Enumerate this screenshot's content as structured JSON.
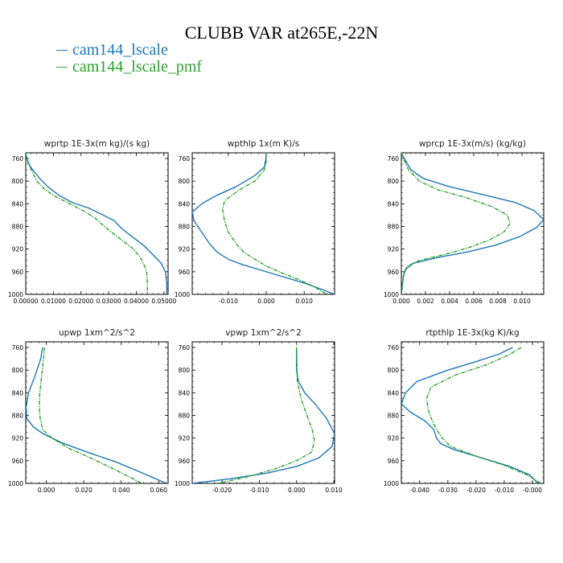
{
  "figure": {
    "title": "CLUBB VAR at265E,-22N",
    "colors": {
      "lscale": "#1f77b4",
      "lscale_pmf": "#2ca02c"
    },
    "legend": [
      "cam144_lscale",
      "cam144_lscale_pmf"
    ]
  },
  "chart_data": [
    {
      "type": "line",
      "title": "wprtp  1E-3x(m kg)/(s kg)",
      "xlim": [
        0.0,
        0.0515
      ],
      "ylim": [
        1000,
        750
      ],
      "xticks": [
        0.0,
        0.01,
        0.02,
        0.03,
        0.04,
        0.05
      ],
      "xticklabels": [
        "0.00000",
        "0.01000",
        "0.02000",
        "0.03000",
        "0.04000",
        "0.05000"
      ],
      "yticks": [
        760,
        800,
        840,
        880,
        920,
        960,
        1000
      ],
      "series": [
        {
          "name": "cam144_lscale",
          "dashed": false,
          "x": [
            0.0,
            0.0004,
            0.0012,
            0.0025,
            0.005,
            0.008,
            0.012,
            0.017,
            0.023,
            0.028,
            0.032,
            0.035,
            0.039,
            0.043,
            0.046,
            0.049,
            0.0505,
            0.051,
            0.051
          ],
          "y": [
            750,
            760,
            770,
            780,
            795,
            810,
            825,
            838,
            848,
            860,
            870,
            885,
            900,
            915,
            930,
            945,
            960,
            980,
            1000
          ]
        },
        {
          "name": "cam144_lscale_pmf",
          "dashed": true,
          "x": [
            0.0,
            0.0003,
            0.001,
            0.002,
            0.004,
            0.007,
            0.011,
            0.016,
            0.021,
            0.025,
            0.028,
            0.031,
            0.035,
            0.039,
            0.0415,
            0.043,
            0.0438,
            0.044,
            0.044
          ],
          "y": [
            750,
            760,
            770,
            780,
            800,
            815,
            828,
            840,
            853,
            865,
            878,
            890,
            905,
            920,
            935,
            950,
            962,
            980,
            1000
          ]
        }
      ]
    },
    {
      "type": "line",
      "title": "wpthlp  1x(m K)/s",
      "xlim": [
        -0.0195,
        0.018
      ],
      "ylim": [
        1000,
        750
      ],
      "xticks": [
        -0.01,
        0.0,
        0.01
      ],
      "xticklabels": [
        "-0.010",
        "0.000",
        "0.010"
      ],
      "yticks": [
        760,
        800,
        840,
        880,
        920,
        960,
        1000
      ],
      "series": [
        {
          "name": "cam144_lscale",
          "dashed": false,
          "x": [
            0.0,
            -0.0001,
            -0.0005,
            -0.003,
            -0.008,
            -0.013,
            -0.017,
            -0.0195,
            -0.019,
            -0.017,
            -0.015,
            -0.013,
            -0.01,
            -0.006,
            -0.002,
            0.004,
            0.01,
            0.015,
            0.018
          ],
          "y": [
            750,
            760,
            775,
            790,
            810,
            825,
            840,
            855,
            870,
            890,
            910,
            925,
            938,
            948,
            956,
            968,
            980,
            992,
            1000
          ]
        },
        {
          "name": "cam144_lscale_pmf",
          "dashed": true,
          "x": [
            0.0,
            0.0,
            -0.0005,
            -0.003,
            -0.007,
            -0.011,
            -0.0115,
            -0.011,
            -0.01,
            -0.008,
            -0.006,
            -0.003,
            0.0,
            0.004,
            0.009,
            0.013,
            0.016
          ],
          "y": [
            750,
            765,
            780,
            800,
            815,
            835,
            850,
            870,
            890,
            910,
            925,
            938,
            950,
            962,
            975,
            988,
            1000
          ]
        }
      ]
    },
    {
      "type": "line",
      "title": "wprcp  1E-3x(m/s) (kg/kg)",
      "xlim": [
        0.0,
        0.0118
      ],
      "ylim": [
        1000,
        750
      ],
      "xticks": [
        0.0,
        0.002,
        0.004,
        0.006,
        0.008,
        0.01
      ],
      "xticklabels": [
        "0.000",
        "0.002",
        "0.004",
        "0.006",
        "0.008",
        "0.010"
      ],
      "yticks": [
        760,
        800,
        840,
        880,
        920,
        960,
        1000
      ],
      "series": [
        {
          "name": "cam144_lscale",
          "dashed": false,
          "x": [
            0.0,
            0.0003,
            0.0008,
            0.0018,
            0.004,
            0.007,
            0.0095,
            0.011,
            0.0118,
            0.0112,
            0.0098,
            0.0078,
            0.0055,
            0.003,
            0.001,
            0.0004,
            0.0002,
            0.0001,
            0.0
          ],
          "y": [
            750,
            762,
            780,
            795,
            810,
            825,
            838,
            852,
            868,
            882,
            898,
            913,
            925,
            935,
            945,
            955,
            965,
            980,
            1000
          ]
        },
        {
          "name": "cam144_lscale_pmf",
          "dashed": true,
          "x": [
            0.0,
            0.0002,
            0.0006,
            0.0015,
            0.003,
            0.0055,
            0.0075,
            0.0088,
            0.009,
            0.0085,
            0.0072,
            0.0055,
            0.0035,
            0.0015,
            0.0005,
            0.0002,
            0.0
          ],
          "y": [
            750,
            762,
            780,
            800,
            815,
            830,
            845,
            860,
            875,
            890,
            905,
            918,
            930,
            940,
            950,
            962,
            1000
          ]
        }
      ]
    },
    {
      "type": "line",
      "title": "upwp  1xm^2/s^2",
      "xlim": [
        -0.011,
        0.065
      ],
      "ylim": [
        1000,
        750
      ],
      "xticks": [
        0.0,
        0.02,
        0.04,
        0.06
      ],
      "xticklabels": [
        "0.000",
        "0.020",
        "0.040",
        "0.060"
      ],
      "yticks": [
        760,
        800,
        840,
        880,
        920,
        960,
        1000
      ],
      "series": [
        {
          "name": "cam144_lscale",
          "dashed": false,
          "x": [
            -0.002,
            -0.003,
            -0.006,
            -0.0095,
            -0.0108,
            -0.0105,
            -0.007,
            -0.002,
            0.008,
            0.022,
            0.037,
            0.05,
            0.064
          ],
          "y": [
            760,
            780,
            810,
            840,
            865,
            885,
            900,
            912,
            928,
            945,
            962,
            980,
            1000
          ]
        },
        {
          "name": "cam144_lscale_pmf",
          "dashed": true,
          "x": [
            -0.001,
            -0.0015,
            -0.0025,
            -0.0035,
            -0.0038,
            -0.0033,
            -0.002,
            0.003,
            0.012,
            0.025,
            0.038,
            0.051
          ],
          "y": [
            760,
            780,
            810,
            840,
            865,
            885,
            905,
            920,
            938,
            957,
            978,
            1000
          ]
        }
      ]
    },
    {
      "type": "line",
      "title": "vpwp  1xm^2/s^2",
      "xlim": [
        -0.028,
        0.0102
      ],
      "ylim": [
        1000,
        750
      ],
      "xticks": [
        -0.02,
        -0.01,
        0.0,
        0.01
      ],
      "xticklabels": [
        "-0.020",
        "-0.010",
        "0.000",
        "0.010"
      ],
      "yticks": [
        760,
        800,
        840,
        880,
        920,
        960,
        1000
      ],
      "series": [
        {
          "name": "cam144_lscale",
          "dashed": false,
          "x": [
            0.0,
            0.0,
            0.0005,
            0.0022,
            0.005,
            0.008,
            0.0102,
            0.0095,
            0.006,
            0.0,
            -0.008,
            -0.018,
            -0.028
          ],
          "y": [
            760,
            800,
            820,
            840,
            860,
            885,
            912,
            935,
            955,
            970,
            982,
            992,
            1000
          ]
        },
        {
          "name": "cam144_lscale_pmf",
          "dashed": true,
          "x": [
            0.0,
            0.0002,
            0.0012,
            0.0028,
            0.0042,
            0.0048,
            0.004,
            0.0,
            -0.006,
            -0.013,
            -0.021
          ],
          "y": [
            760,
            820,
            850,
            880,
            905,
            925,
            945,
            960,
            975,
            988,
            1000
          ]
        }
      ]
    },
    {
      "type": "line",
      "title": "rtpthlp  1E-3x(kg K)/kg",
      "xlim": [
        -0.0465,
        0.004
      ],
      "ylim": [
        1000,
        750
      ],
      "xticks": [
        -0.04,
        -0.03,
        -0.02,
        -0.01,
        0.0
      ],
      "xticklabels": [
        "-0.040",
        "-0.030",
        "-0.020",
        "-0.010",
        "-0.000"
      ],
      "yticks": [
        760,
        800,
        840,
        880,
        920,
        960,
        1000
      ],
      "series": [
        {
          "name": "cam144_lscale",
          "dashed": false,
          "x": [
            -0.007,
            -0.012,
            -0.02,
            -0.03,
            -0.041,
            -0.045,
            -0.0465,
            -0.043,
            -0.038,
            -0.035,
            -0.034,
            -0.0325,
            -0.028,
            -0.018,
            -0.008,
            -0.001,
            0.002
          ],
          "y": [
            760,
            772,
            785,
            800,
            820,
            840,
            860,
            875,
            890,
            905,
            920,
            930,
            940,
            955,
            970,
            985,
            1000
          ]
        },
        {
          "name": "cam144_lscale_pmf",
          "dashed": true,
          "x": [
            -0.004,
            -0.008,
            -0.016,
            -0.027,
            -0.036,
            -0.0375,
            -0.037,
            -0.0355,
            -0.034,
            -0.032,
            -0.029,
            -0.02,
            -0.01,
            -0.002,
            0.003
          ],
          "y": [
            760,
            772,
            790,
            808,
            830,
            850,
            870,
            890,
            905,
            920,
            935,
            952,
            968,
            985,
            1000
          ]
        }
      ]
    }
  ]
}
